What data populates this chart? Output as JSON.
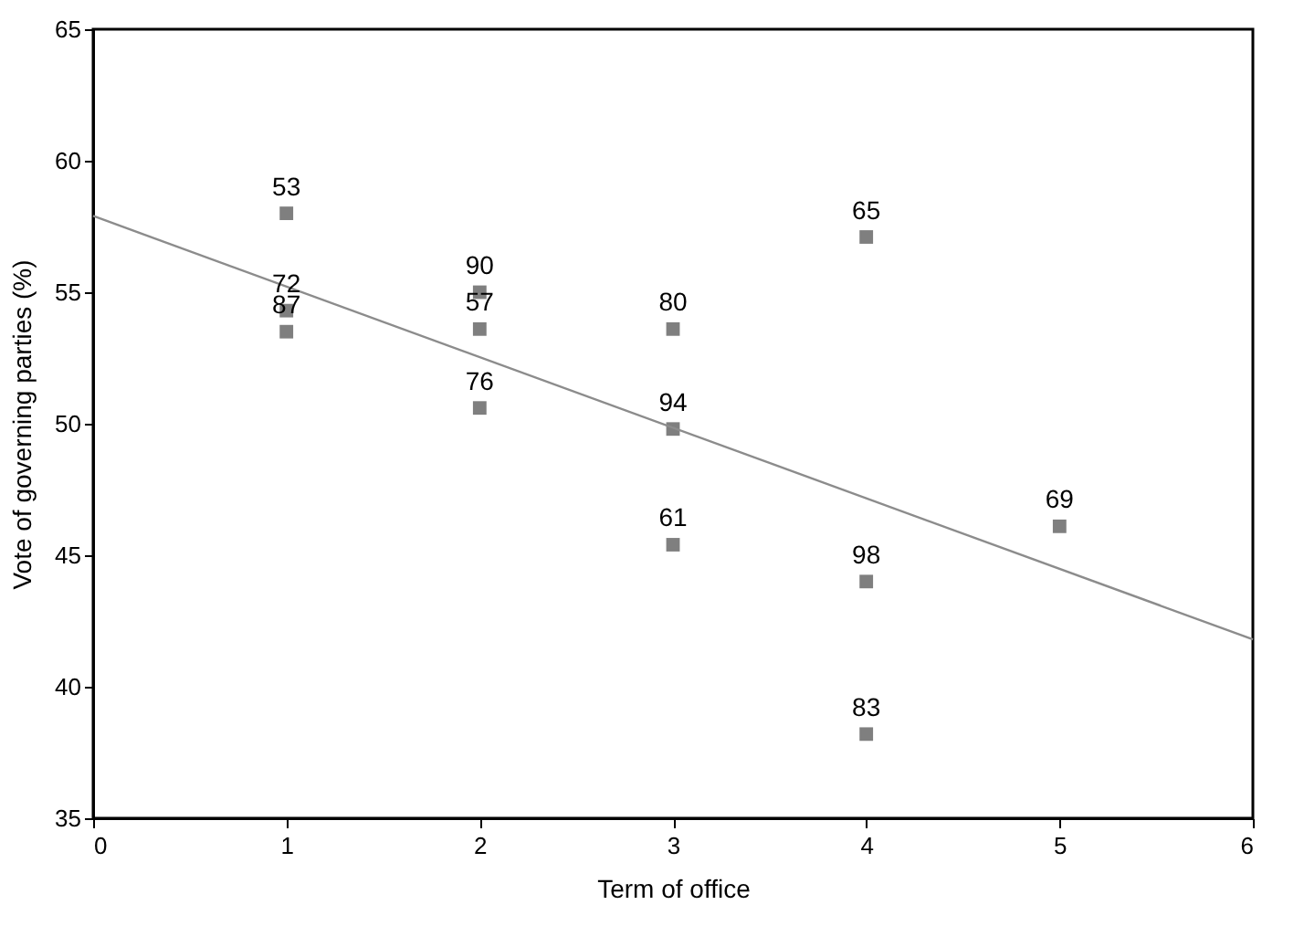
{
  "chart_data": {
    "type": "scatter",
    "xlabel": "Term of office",
    "ylabel": "Vote of governing parties (%)",
    "xlim": [
      0,
      6
    ],
    "xticks": [
      0,
      1,
      2,
      3,
      4,
      5,
      6
    ],
    "ylim": [
      35,
      65
    ],
    "yticks": [
      35,
      40,
      45,
      50,
      55,
      60,
      65
    ],
    "grid": false,
    "series": [
      {
        "color": "#7f7f7f",
        "marker": "square",
        "x": [
          1,
          1,
          1,
          2,
          2,
          2,
          3,
          3,
          3,
          4,
          4,
          4,
          5
        ],
        "values": [
          58.0,
          54.3,
          53.5,
          55.0,
          53.6,
          50.6,
          53.6,
          49.8,
          45.4,
          57.1,
          44.0,
          38.2,
          46.1
        ]
      },
      {
        "type": "line",
        "marker": "none",
        "color": "#8c8c8c",
        "x": [
          0,
          6
        ],
        "values": [
          57.9,
          41.8
        ]
      }
    ],
    "annotations": [
      {
        "text": "53",
        "x": 1,
        "y": 58.0
      },
      {
        "text": "72",
        "x": 1,
        "y": 54.3
      },
      {
        "text": "87",
        "x": 1,
        "y": 53.5
      },
      {
        "text": "90",
        "x": 2,
        "y": 55.0
      },
      {
        "text": "57",
        "x": 2,
        "y": 53.6
      },
      {
        "text": "76",
        "x": 2,
        "y": 50.6
      },
      {
        "text": "80",
        "x": 3,
        "y": 53.6
      },
      {
        "text": "94",
        "x": 3,
        "y": 49.8
      },
      {
        "text": "61",
        "x": 3,
        "y": 45.4
      },
      {
        "text": "65",
        "x": 4,
        "y": 57.1
      },
      {
        "text": "98",
        "x": 4,
        "y": 44.0
      },
      {
        "text": "83",
        "x": 4,
        "y": 38.2
      },
      {
        "text": "69",
        "x": 5,
        "y": 46.1
      }
    ]
  }
}
